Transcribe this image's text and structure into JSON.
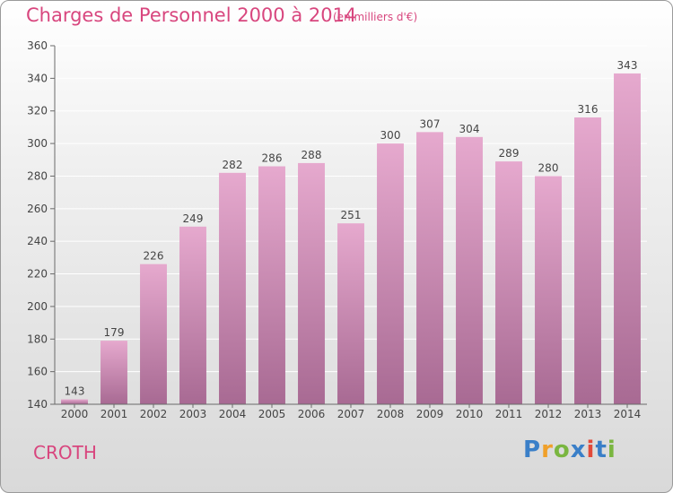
{
  "header": {
    "title": "Charges de Personnel 2000 à 2014",
    "subtitle": "(en milliers d'€)"
  },
  "commune": "CROTH",
  "logo": {
    "text": "Proxiti",
    "letter_colors": [
      "#3a7fc8",
      "#f0a02a",
      "#7ab640",
      "#3a7fc8",
      "#e24a3a",
      "#3a7fc8",
      "#7ab640"
    ]
  },
  "colors": {
    "bar_top": "#e6a9ce",
    "bar_bottom": "#a86a93",
    "title": "#d8467e",
    "grid": "#ffffff",
    "axis": "#6a6a6a"
  },
  "chart_data": {
    "type": "bar",
    "categories": [
      "2000",
      "2001",
      "2002",
      "2003",
      "2004",
      "2005",
      "2006",
      "2007",
      "2008",
      "2009",
      "2010",
      "2011",
      "2012",
      "2013",
      "2014"
    ],
    "values": [
      143,
      179,
      226,
      249,
      282,
      286,
      288,
      251,
      300,
      307,
      304,
      289,
      280,
      316,
      343
    ],
    "title": "Charges de Personnel 2000 à 2014",
    "subtitle": "(en milliers d'€)",
    "ylim": [
      140,
      360
    ],
    "yticks": [
      140,
      160,
      180,
      200,
      220,
      240,
      260,
      280,
      300,
      320,
      340,
      360
    ],
    "grid": true
  }
}
